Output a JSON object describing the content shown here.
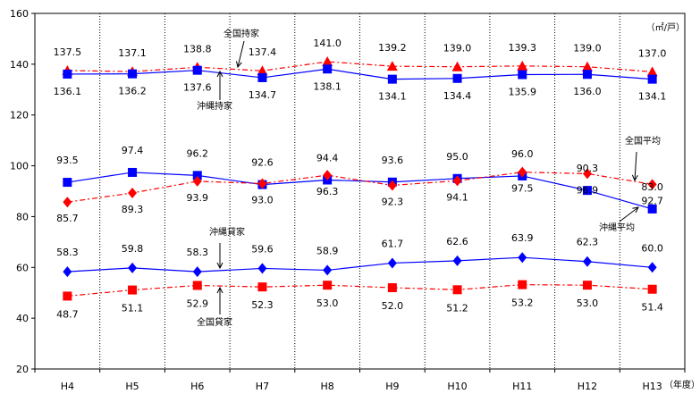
{
  "chart_data": {
    "type": "line",
    "unit": "（㎡/戸）",
    "x_unit": "（年度）",
    "categories": [
      "H4",
      "H5",
      "H6",
      "H7",
      "H8",
      "H9",
      "H10",
      "H11",
      "H12",
      "H13"
    ],
    "ylim": [
      20,
      160
    ],
    "yticks": [
      20,
      40,
      60,
      80,
      100,
      120,
      140,
      160
    ],
    "ytick_labels": [
      "20",
      "40",
      "60",
      "80",
      "100",
      "120",
      "140",
      "160"
    ],
    "grid": "vertical dotted separators between categories",
    "series": [
      {
        "name": "全国持家",
        "color": "#ff0000",
        "line": "dashdot",
        "marker": "triangle",
        "values": [
          137.5,
          137.1,
          138.8,
          137.4,
          141.0,
          139.2,
          139.0,
          139.3,
          139.0,
          137.0
        ],
        "labels": [
          "137.5",
          "137.1",
          "138.8",
          "137.4",
          "141.0",
          "139.2",
          "139.0",
          "139.3",
          "139.0",
          "137.0"
        ]
      },
      {
        "name": "沖縄持家",
        "color": "#0000ff",
        "line": "solid",
        "marker": "square",
        "values": [
          136.1,
          136.2,
          137.6,
          134.7,
          138.1,
          134.1,
          134.4,
          135.9,
          136.0,
          134.1
        ],
        "labels": [
          "136.1",
          "136.2",
          "137.6",
          "134.7",
          "138.1",
          "134.1",
          "134.4",
          "135.9",
          "136.0",
          "134.1"
        ]
      },
      {
        "name": "沖縄平均",
        "color": "#0000ff",
        "line": "solid",
        "marker": "square",
        "values": [
          93.5,
          97.4,
          96.2,
          92.6,
          94.4,
          93.6,
          95.0,
          96.0,
          90.3,
          83.0
        ],
        "labels": [
          "93.5",
          "97.4",
          "96.2",
          "92.6",
          "94.4",
          "93.6",
          "95.0",
          "96.0",
          "90.3",
          "83.0"
        ]
      },
      {
        "name": "全国平均",
        "color": "#ff0000",
        "line": "dashdot",
        "marker": "diamond",
        "values": [
          85.7,
          89.3,
          93.9,
          93.0,
          96.3,
          92.3,
          94.1,
          97.5,
          96.9,
          92.7
        ],
        "labels": [
          "85.7",
          "89.3",
          "93.9",
          "93.0",
          "96.3",
          "92.3",
          "94.1",
          "97.5",
          "96.9",
          "92.7"
        ]
      },
      {
        "name": "沖縄貸家",
        "color": "#0000ff",
        "line": "solid",
        "marker": "diamond",
        "values": [
          58.3,
          59.8,
          58.3,
          59.6,
          58.9,
          61.7,
          62.6,
          63.9,
          62.3,
          60.0
        ],
        "labels": [
          "58.3",
          "59.8",
          "58.3",
          "59.6",
          "58.9",
          "61.7",
          "62.6",
          "63.9",
          "62.3",
          "60.0"
        ]
      },
      {
        "name": "全国貸家",
        "color": "#ff0000",
        "line": "dashdot",
        "marker": "square",
        "values": [
          48.7,
          51.1,
          52.9,
          52.3,
          53.0,
          52.0,
          51.2,
          53.2,
          53.0,
          51.4
        ],
        "labels": [
          "48.7",
          "51.1",
          "52.9",
          "52.3",
          "53.0",
          "52.0",
          "51.2",
          "53.2",
          "53.0",
          "51.4"
        ]
      }
    ]
  }
}
